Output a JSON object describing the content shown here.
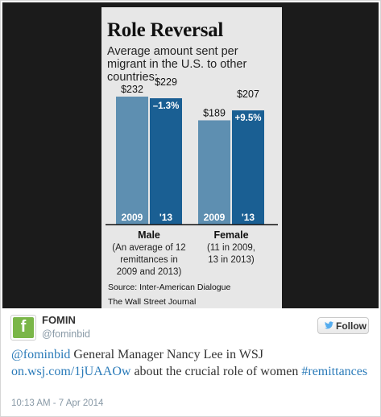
{
  "graphic": {
    "title": "Role Reversal",
    "subtitle": "Average amount sent per migrant in the U.S. to other countries:",
    "source": "Source: Inter-American Dialogue",
    "publisher": "The Wall Street Journal"
  },
  "chart_data": {
    "type": "bar",
    "title": "Role Reversal",
    "subtitle": "Average amount sent per migrant in the U.S. to other countries:",
    "ylim": [
      0,
      250
    ],
    "grid": false,
    "colors": {
      "2009": "#5e8fb1",
      "2013": "#1a5f93"
    },
    "groups": [
      {
        "label": "Male",
        "note": [
          "(An average of 12",
          "remittances in",
          "2009 and 2013)"
        ],
        "bars": [
          {
            "year": "2009",
            "value": 232,
            "label": "$232",
            "change": ""
          },
          {
            "year": "'13",
            "value": 229,
            "label": "$229",
            "change": "–1.3%"
          }
        ]
      },
      {
        "label": "Female",
        "note": [
          "(11 in 2009,",
          "13 in 2013)"
        ],
        "bars": [
          {
            "year": "2009",
            "value": 189,
            "label": "$189",
            "change": ""
          },
          {
            "year": "'13",
            "value": 207,
            "label": "$207",
            "change": "+9.5%"
          }
        ]
      }
    ]
  },
  "tweet": {
    "name": "FOMIN",
    "handle": "@fominbid",
    "avatar_letter": "f",
    "follow_label": "Follow",
    "text_mention": "@fominbid",
    "text_part1": " General Manager Nancy Lee in WSJ ",
    "text_link": "on.wsj.com/1jUAAOw",
    "text_part2": " about the crucial role of women ",
    "text_hashtag": "#remittances",
    "timestamp": "10:13 AM - 7 Apr 2014",
    "colors": {
      "link": "#2b7bb9",
      "avatar": "#7ab648"
    }
  }
}
